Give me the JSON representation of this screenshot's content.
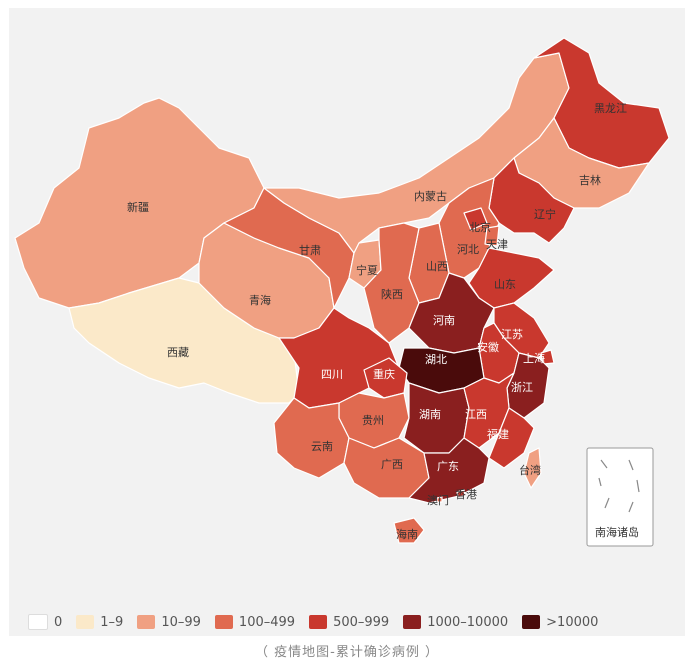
{
  "legend": {
    "items": [
      {
        "label": "0",
        "color": "#ffffff"
      },
      {
        "label": "1–9",
        "color": "#fbe9c9"
      },
      {
        "label": "10–99",
        "color": "#f0a082"
      },
      {
        "label": "100–499",
        "color": "#e06a50"
      },
      {
        "label": "500–999",
        "color": "#c9382e"
      },
      {
        "label": "1000–10000",
        "color": "#8a1f1f"
      },
      {
        "label": ">10000",
        "color": "#4a0b0b"
      }
    ]
  },
  "provinces": {
    "heilongjiang": "黑龙江",
    "jilin": "吉林",
    "liaoning": "辽宁",
    "neimenggu": "内蒙古",
    "beijing": "北京",
    "tianjin": "天津",
    "hebei": "河北",
    "shanxi": "山西",
    "shandong": "山东",
    "xinjiang": "新疆",
    "gansu": "甘肃",
    "ningxia": "宁夏",
    "qinghai": "青海",
    "shaanxi": "陕西",
    "henan": "河南",
    "jiangsu": "江苏",
    "anhui": "安徽",
    "shanghai": "上海",
    "xizang": "西藏",
    "sichuan": "四川",
    "chongqing": "重庆",
    "hubei": "湖北",
    "zhejiang": "浙江",
    "guizhou": "贵州",
    "hunan": "湖南",
    "jiangxi": "江西",
    "yunnan": "云南",
    "fujian": "福建",
    "guangxi": "广西",
    "guangdong": "广东",
    "taiwan": "台湾",
    "xianggang": "香港",
    "aomen": "澳门",
    "hainan": "海南"
  },
  "inset": {
    "label": "南海诸岛"
  },
  "caption": "（ 疫情地图-累计确诊病例 ）"
}
